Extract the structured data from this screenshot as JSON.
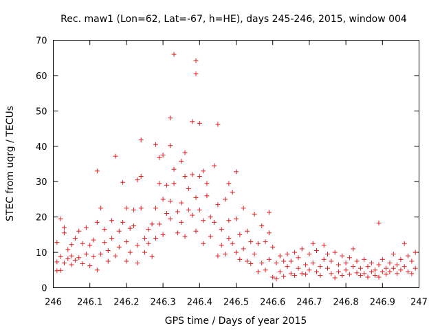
{
  "chart_data": {
    "type": "scatter",
    "title": "Rec. maw1 (Lon=62, Lat=-67, h=HE), days 245-246, 2015, window 004",
    "xlabel": "GPS time / Days of year 2015",
    "ylabel": "STEC from uqrg / TECUs",
    "xlim": [
      246,
      247
    ],
    "ylim": [
      0,
      70
    ],
    "x_ticks": [
      246,
      246.1,
      246.2,
      246.3,
      246.4,
      246.5,
      246.6,
      246.7,
      246.8,
      246.9,
      247
    ],
    "x_tick_labels": [
      "246",
      "246.1",
      "246.2",
      "246.3",
      "246.4",
      "246.5",
      "246.6",
      "246.7",
      "246.8",
      "246.9",
      "247"
    ],
    "y_ticks": [
      0,
      10,
      20,
      30,
      40,
      50,
      60,
      70
    ],
    "y_tick_labels": [
      "0",
      "10",
      "20",
      "30",
      "40",
      "50",
      "60",
      "70"
    ],
    "grid": false,
    "legend": "none",
    "marker": "plus",
    "color": "#e41a1c",
    "series": [
      {
        "points": [
          [
            246.01,
            7.3
          ],
          [
            246.01,
            4.8
          ],
          [
            246.01,
            12.8
          ],
          [
            246.02,
            19.5
          ],
          [
            246.02,
            8.8
          ],
          [
            246.02,
            4.9
          ],
          [
            246.03,
            7.0
          ],
          [
            246.03,
            15.5
          ],
          [
            246.03,
            17.0
          ],
          [
            246.04,
            8.2
          ],
          [
            246.04,
            10.8
          ],
          [
            246.05,
            9.0
          ],
          [
            246.05,
            12.2
          ],
          [
            246.05,
            6.5
          ],
          [
            246.06,
            7.8
          ],
          [
            246.06,
            14.0
          ],
          [
            246.07,
            8.5
          ],
          [
            246.07,
            16.0
          ],
          [
            246.08,
            6.8
          ],
          [
            246.08,
            12.5
          ],
          [
            246.09,
            9.5
          ],
          [
            246.09,
            17.0
          ],
          [
            246.1,
            12.0
          ],
          [
            246.1,
            6.2
          ],
          [
            246.11,
            13.5
          ],
          [
            246.11,
            8.8
          ],
          [
            246.12,
            33.0
          ],
          [
            246.12,
            18.5
          ],
          [
            246.12,
            5.0
          ],
          [
            246.13,
            22.5
          ],
          [
            246.13,
            9.5
          ],
          [
            246.14,
            12.8
          ],
          [
            246.14,
            16.5
          ],
          [
            246.15,
            7.5
          ],
          [
            246.15,
            10.5
          ],
          [
            246.16,
            19.0
          ],
          [
            246.16,
            14.0
          ],
          [
            246.17,
            37.2
          ],
          [
            246.17,
            9.0
          ],
          [
            246.18,
            16.0
          ],
          [
            246.18,
            11.5
          ],
          [
            246.19,
            29.8
          ],
          [
            246.19,
            18.5
          ],
          [
            246.2,
            7.5
          ],
          [
            246.2,
            22.5
          ],
          [
            246.2,
            13.0
          ],
          [
            246.21,
            16.8
          ],
          [
            246.21,
            10.0
          ],
          [
            246.22,
            22.0
          ],
          [
            246.22,
            17.5
          ],
          [
            246.23,
            30.5
          ],
          [
            246.23,
            12.0
          ],
          [
            246.23,
            7.0
          ],
          [
            246.24,
            41.8
          ],
          [
            246.24,
            31.5
          ],
          [
            246.24,
            22.5
          ],
          [
            246.25,
            14.0
          ],
          [
            246.25,
            10.0
          ],
          [
            246.26,
            16.5
          ],
          [
            246.26,
            12.5
          ],
          [
            246.27,
            18.0
          ],
          [
            246.27,
            8.8
          ],
          [
            246.28,
            22.5
          ],
          [
            246.28,
            40.5
          ],
          [
            246.28,
            14.0
          ],
          [
            246.29,
            29.5
          ],
          [
            246.29,
            36.8
          ],
          [
            246.29,
            18.0
          ],
          [
            246.3,
            25.0
          ],
          [
            246.3,
            37.5
          ],
          [
            246.3,
            15.0
          ],
          [
            246.31,
            29.0
          ],
          [
            246.31,
            21.0
          ],
          [
            246.32,
            48.0
          ],
          [
            246.32,
            40.2
          ],
          [
            246.32,
            24.5
          ],
          [
            246.32,
            19.5
          ],
          [
            246.33,
            29.5
          ],
          [
            246.33,
            66.0
          ],
          [
            246.33,
            33.5
          ],
          [
            246.34,
            21.5
          ],
          [
            246.34,
            15.5
          ],
          [
            246.35,
            35.8
          ],
          [
            246.35,
            24.0
          ],
          [
            246.35,
            18.5
          ],
          [
            246.36,
            38.2
          ],
          [
            246.36,
            31.5
          ],
          [
            246.36,
            14.5
          ],
          [
            246.37,
            28.0
          ],
          [
            246.37,
            22.0
          ],
          [
            246.38,
            47.0
          ],
          [
            246.38,
            32.0
          ],
          [
            246.38,
            20.5
          ],
          [
            246.39,
            64.2
          ],
          [
            246.39,
            60.5
          ],
          [
            246.39,
            25.5
          ],
          [
            246.39,
            16.0
          ],
          [
            246.4,
            46.5
          ],
          [
            246.4,
            31.5
          ],
          [
            246.4,
            22.0
          ],
          [
            246.41,
            33.0
          ],
          [
            246.41,
            19.0
          ],
          [
            246.41,
            12.5
          ],
          [
            246.42,
            29.5
          ],
          [
            246.42,
            26.0
          ],
          [
            246.43,
            20.0
          ],
          [
            246.43,
            14.5
          ],
          [
            246.44,
            34.5
          ],
          [
            246.44,
            18.5
          ],
          [
            246.45,
            46.2
          ],
          [
            246.45,
            23.5
          ],
          [
            246.45,
            9.0
          ],
          [
            246.46,
            16.5
          ],
          [
            246.46,
            12.0
          ],
          [
            246.47,
            25.0
          ],
          [
            246.47,
            9.5
          ],
          [
            246.48,
            29.5
          ],
          [
            246.48,
            19.0
          ],
          [
            246.48,
            14.0
          ],
          [
            246.49,
            27.0
          ],
          [
            246.49,
            12.5
          ],
          [
            246.5,
            32.8
          ],
          [
            246.5,
            19.5
          ],
          [
            246.5,
            10.0
          ],
          [
            246.51,
            15.0
          ],
          [
            246.51,
            8.0
          ],
          [
            246.52,
            22.5
          ],
          [
            246.52,
            11.0
          ],
          [
            246.53,
            16.0
          ],
          [
            246.53,
            7.5
          ],
          [
            246.54,
            13.0
          ],
          [
            246.54,
            6.8
          ],
          [
            246.55,
            20.8
          ],
          [
            246.55,
            9.5
          ],
          [
            246.56,
            12.5
          ],
          [
            246.56,
            4.5
          ],
          [
            246.57,
            17.5
          ],
          [
            246.57,
            7.0
          ],
          [
            246.58,
            13.0
          ],
          [
            246.58,
            5.0
          ],
          [
            246.59,
            21.3
          ],
          [
            246.59,
            15.5
          ],
          [
            246.59,
            8.0
          ],
          [
            246.6,
            11.5
          ],
          [
            246.6,
            3.0
          ],
          [
            246.61,
            7.0
          ],
          [
            246.61,
            2.5
          ],
          [
            246.62,
            9.0
          ],
          [
            246.62,
            4.5
          ],
          [
            246.63,
            7.5
          ],
          [
            246.63,
            3.2
          ],
          [
            246.64,
            6.0
          ],
          [
            246.64,
            9.5
          ],
          [
            246.65,
            4.0
          ],
          [
            246.65,
            7.5
          ],
          [
            246.66,
            3.5
          ],
          [
            246.66,
            10.0
          ],
          [
            246.67,
            5.5
          ],
          [
            246.67,
            8.5
          ],
          [
            246.68,
            4.0
          ],
          [
            246.68,
            11.0
          ],
          [
            246.69,
            6.5
          ],
          [
            246.69,
            3.8
          ],
          [
            246.7,
            9.5
          ],
          [
            246.7,
            5.0
          ],
          [
            246.71,
            12.5
          ],
          [
            246.71,
            7.0
          ],
          [
            246.72,
            4.5
          ],
          [
            246.72,
            10.5
          ],
          [
            246.73,
            6.0
          ],
          [
            246.73,
            3.5
          ],
          [
            246.74,
            12.0
          ],
          [
            246.74,
            8.0
          ],
          [
            246.75,
            5.5
          ],
          [
            246.75,
            9.5
          ],
          [
            246.76,
            4.0
          ],
          [
            246.76,
            7.5
          ],
          [
            246.77,
            10.0
          ],
          [
            246.77,
            2.8
          ],
          [
            246.78,
            6.5
          ],
          [
            246.78,
            4.5
          ],
          [
            246.79,
            9.0
          ],
          [
            246.79,
            3.5
          ],
          [
            246.8,
            7.0
          ],
          [
            246.8,
            5.0
          ],
          [
            246.81,
            8.5
          ],
          [
            246.81,
            3.8
          ],
          [
            246.82,
            11.0
          ],
          [
            246.82,
            6.0
          ],
          [
            246.83,
            4.2
          ],
          [
            246.83,
            7.5
          ],
          [
            246.84,
            3.5
          ],
          [
            246.84,
            5.5
          ],
          [
            246.85,
            8.0
          ],
          [
            246.85,
            4.0
          ],
          [
            246.86,
            6.0
          ],
          [
            246.86,
            3.0
          ],
          [
            246.87,
            4.5
          ],
          [
            246.87,
            7.0
          ],
          [
            246.88,
            3.5
          ],
          [
            246.88,
            5.0
          ],
          [
            246.89,
            18.3
          ],
          [
            246.89,
            6.5
          ],
          [
            246.89,
            3.0
          ],
          [
            246.9,
            4.5
          ],
          [
            246.9,
            8.0
          ],
          [
            246.91,
            5.5
          ],
          [
            246.91,
            3.8
          ],
          [
            246.92,
            7.0
          ],
          [
            246.92,
            4.5
          ],
          [
            246.93,
            9.5
          ],
          [
            246.93,
            5.5
          ],
          [
            246.94,
            6.5
          ],
          [
            246.94,
            4.0
          ],
          [
            246.95,
            8.0
          ],
          [
            246.95,
            5.0
          ],
          [
            246.96,
            12.5
          ],
          [
            246.96,
            6.0
          ],
          [
            246.97,
            4.5
          ],
          [
            246.97,
            9.0
          ],
          [
            246.98,
            7.5
          ],
          [
            246.98,
            4.0
          ],
          [
            246.99,
            10.0
          ],
          [
            246.99,
            5.5
          ]
        ]
      }
    ]
  }
}
